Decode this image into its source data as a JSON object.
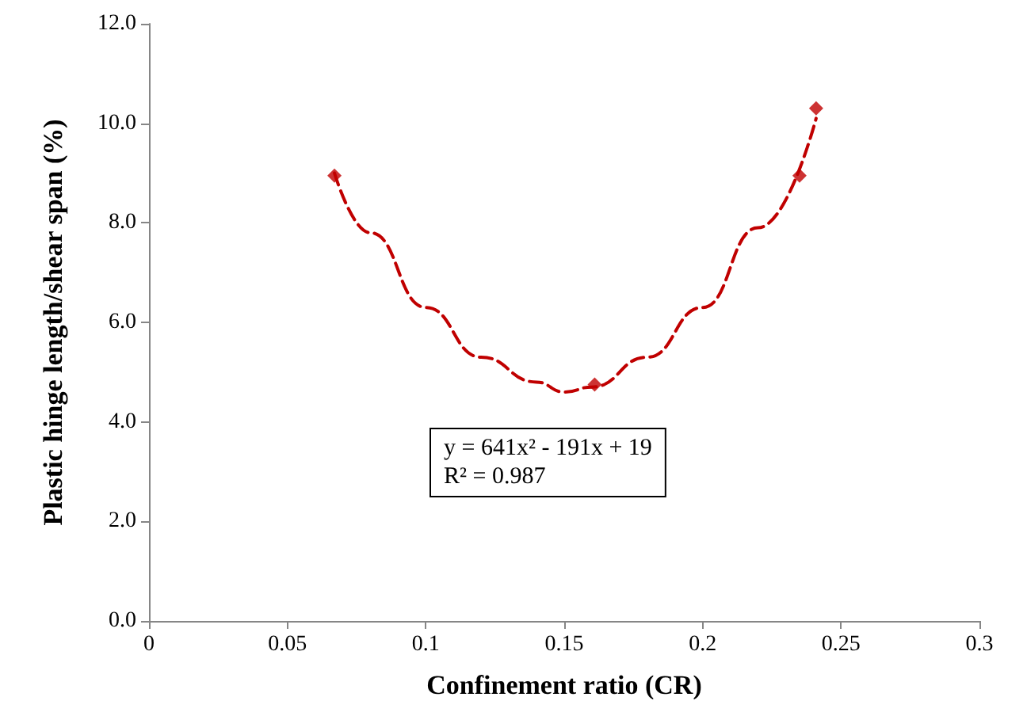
{
  "chart_data": {
    "type": "scatter",
    "xlabel": "Confinement ratio (CR)",
    "ylabel": "Plastic hinge length/shear span (%)",
    "x": [
      0.067,
      0.161,
      0.235,
      0.241
    ],
    "series": [
      {
        "color": "#c00000",
        "marker": "diamond",
        "values": [
          8.95,
          4.75,
          8.95,
          10.3
        ]
      },
      {
        "type": "line",
        "color": "#c00000",
        "line_style": "dashed",
        "marker": "none",
        "x": [
          0.067,
          0.08,
          0.1,
          0.12,
          0.14,
          0.15,
          0.16,
          0.18,
          0.2,
          0.22,
          0.241
        ],
        "values": [
          9.0,
          7.8,
          6.3,
          5.3,
          4.8,
          4.6,
          4.7,
          5.3,
          6.3,
          7.9,
          10.1
        ]
      }
    ],
    "xlim": [
      0,
      0.3
    ],
    "xticks": [
      0,
      0.05,
      0.1,
      0.15,
      0.2,
      0.25,
      0.3
    ],
    "ylim": [
      0,
      12
    ],
    "yticks": [
      {
        "value": 0,
        "label": "0.0"
      },
      {
        "value": 2,
        "label": "2.0"
      },
      {
        "value": 4,
        "label": "4.0"
      },
      {
        "value": 6,
        "label": "6.0"
      },
      {
        "value": 8,
        "label": "8.0"
      },
      {
        "value": 10,
        "label": "10.0"
      },
      {
        "value": 12,
        "label": "12.0"
      }
    ],
    "annotations": [
      "y = 641x² - 191x + 19\nR² = 0.987"
    ],
    "grid": false
  }
}
